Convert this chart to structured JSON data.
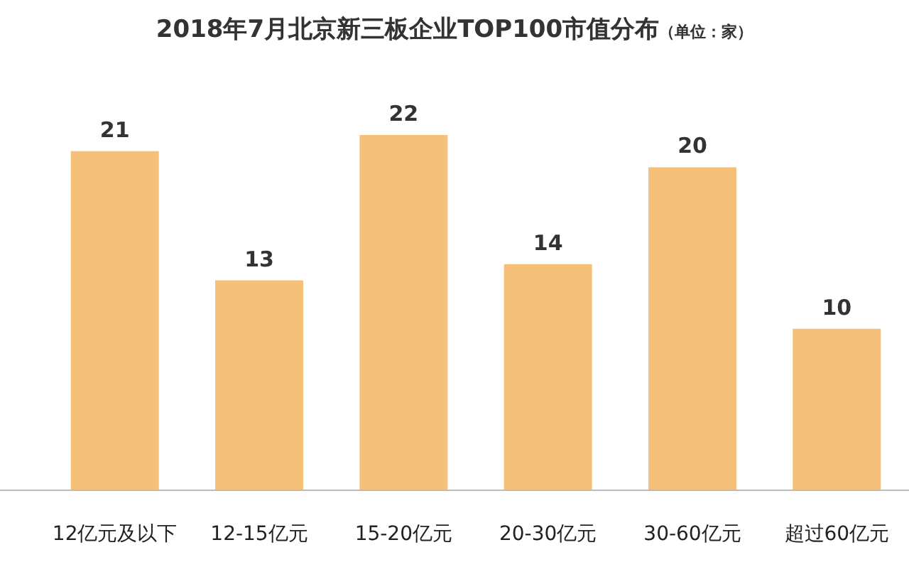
{
  "chart_data": {
    "type": "bar",
    "title": "2018年7月北京新三板企业TOP100市值分布",
    "subtitle": "（单位：家）",
    "categories": [
      "12亿元及以下",
      "12-15亿元",
      "15-20亿元",
      "20-30亿元",
      "30-60亿元",
      "超过60亿元"
    ],
    "values": [
      21,
      13,
      22,
      14,
      20,
      10
    ],
    "color": "#f5c07a",
    "data_labels": true
  }
}
